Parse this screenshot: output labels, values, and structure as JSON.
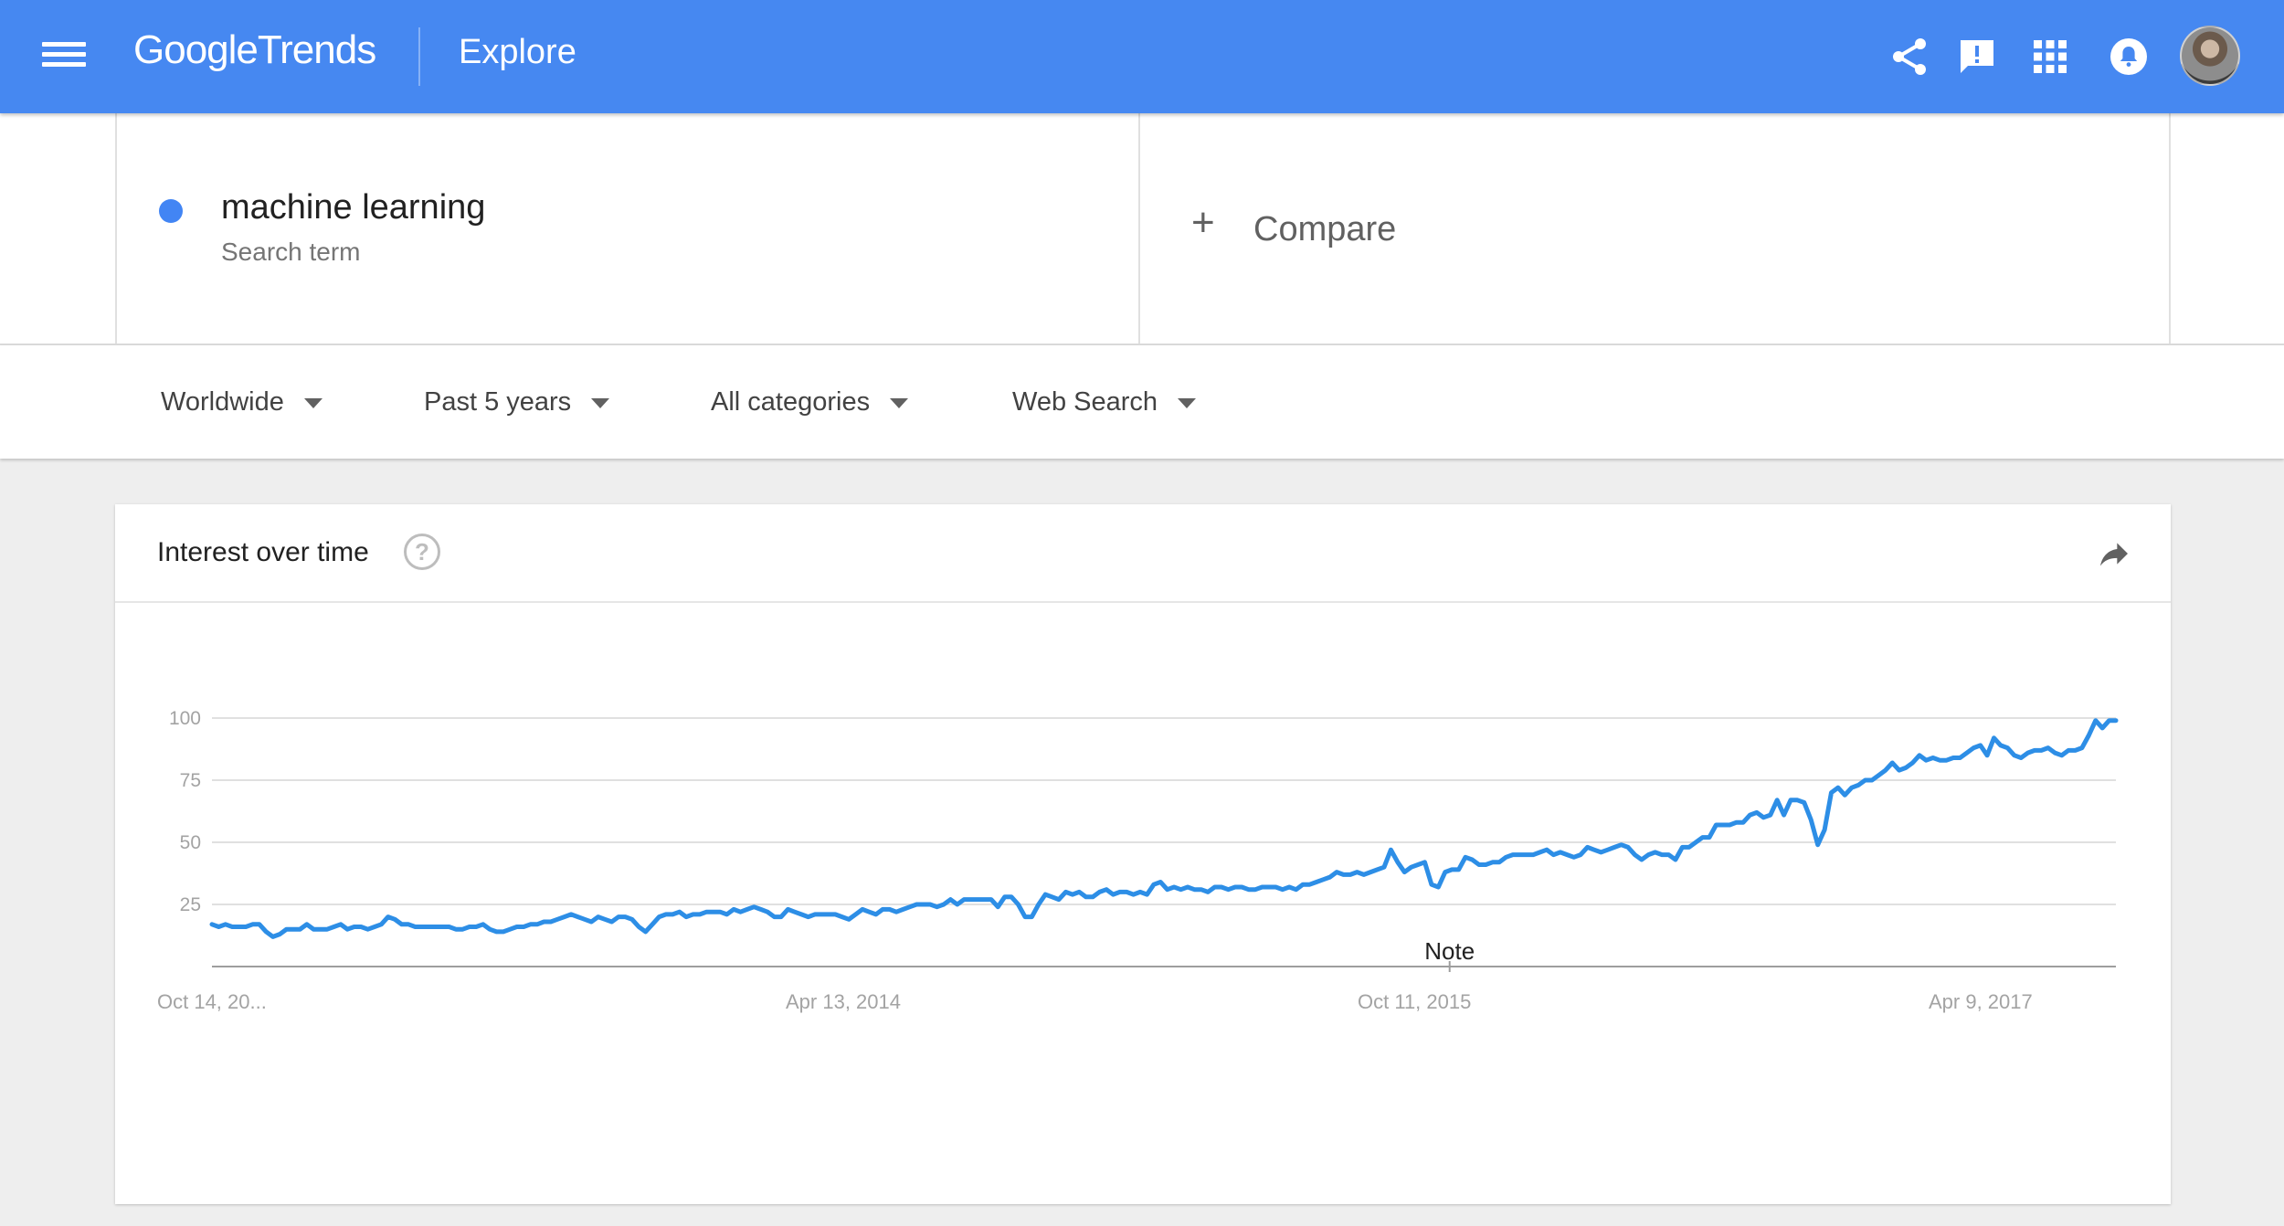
{
  "app": {
    "logo_google": "Google",
    "logo_trends": "Trends",
    "page": "Explore"
  },
  "term": {
    "name": "machine learning",
    "subtitle": "Search term",
    "color": "#4285f4"
  },
  "compare": {
    "icon": "plus-icon",
    "label": "Compare"
  },
  "filters": [
    {
      "label": "Worldwide"
    },
    {
      "label": "Past 5 years"
    },
    {
      "label": "All categories"
    },
    {
      "label": "Web Search"
    }
  ],
  "card": {
    "title": "Interest over time"
  },
  "icons": {
    "menu": "menu-icon",
    "share": "share-icon",
    "feedback": "feedback-icon",
    "apps": "apps-grid-icon",
    "notifications": "notifications-icon",
    "help": "help-icon",
    "share_chart": "share-arrow-icon"
  },
  "colors": {
    "appbar": "#4688f1",
    "series": "#2d8ee6"
  },
  "chart_data": {
    "type": "line",
    "title": "",
    "xlabel": "",
    "ylabel": "",
    "ylim": [
      0,
      100
    ],
    "yticks": [
      25,
      50,
      75,
      100
    ],
    "xtick_labels": [
      "Oct 14, 20...",
      "Apr 13, 2014",
      "Oct 11, 2015",
      "Apr 9, 2017"
    ],
    "note_label": "Note",
    "note_date": "2016-01-01",
    "start_date": "2012-10-14",
    "end_date": "2017-09-24",
    "grid": true,
    "series": [
      {
        "name": "machine learning",
        "values": [
          17,
          16,
          17,
          16,
          16,
          16,
          17,
          17,
          14,
          12,
          13,
          15,
          15,
          15,
          17,
          15,
          15,
          15,
          16,
          17,
          15,
          16,
          16,
          15,
          16,
          17,
          20,
          19,
          17,
          17,
          16,
          16,
          16,
          16,
          16,
          16,
          15,
          15,
          16,
          16,
          17,
          15,
          14,
          14,
          15,
          16,
          16,
          17,
          17,
          18,
          18,
          19,
          20,
          21,
          20,
          19,
          18,
          20,
          19,
          18,
          20,
          20,
          19,
          16,
          14,
          17,
          20,
          21,
          21,
          22,
          20,
          21,
          21,
          22,
          22,
          22,
          21,
          23,
          22,
          23,
          24,
          23,
          22,
          20,
          20,
          23,
          22,
          21,
          20,
          21,
          21,
          21,
          21,
          20,
          19,
          21,
          23,
          22,
          21,
          23,
          23,
          22,
          23,
          24,
          25,
          25,
          25,
          24,
          25,
          27,
          25,
          27,
          27,
          27,
          27,
          27,
          24,
          28,
          28,
          25,
          20,
          20,
          25,
          29,
          28,
          27,
          30,
          29,
          30,
          28,
          28,
          30,
          31,
          29,
          30,
          30,
          29,
          30,
          29,
          33,
          34,
          31,
          32,
          31,
          32,
          31,
          31,
          30,
          32,
          32,
          31,
          32,
          32,
          31,
          31,
          32,
          32,
          32,
          31,
          32,
          31,
          33,
          33,
          34,
          35,
          36,
          38,
          37,
          37,
          38,
          37,
          38,
          39,
          40,
          47,
          42,
          38,
          40,
          41,
          42,
          33,
          32,
          38,
          39,
          39,
          44,
          43,
          41,
          41,
          42,
          42,
          44,
          45,
          45,
          45,
          45,
          46,
          47,
          45,
          46,
          45,
          44,
          45,
          48,
          47,
          46,
          47,
          48,
          49,
          48,
          45,
          43,
          45,
          46,
          45,
          45,
          43,
          48,
          48,
          50,
          52,
          52,
          57,
          57,
          57,
          58,
          58,
          61,
          62,
          60,
          61,
          67,
          61,
          67,
          67,
          66,
          59,
          49,
          55,
          70,
          72,
          69,
          72,
          73,
          75,
          75,
          77,
          79,
          82,
          79,
          80,
          82,
          85,
          83,
          84,
          83,
          83,
          84,
          84,
          86,
          88,
          89,
          85,
          92,
          89,
          88,
          85,
          84,
          86,
          87,
          87,
          88,
          86,
          85,
          87,
          87,
          88,
          93,
          99,
          96,
          99,
          99
        ]
      }
    ]
  }
}
